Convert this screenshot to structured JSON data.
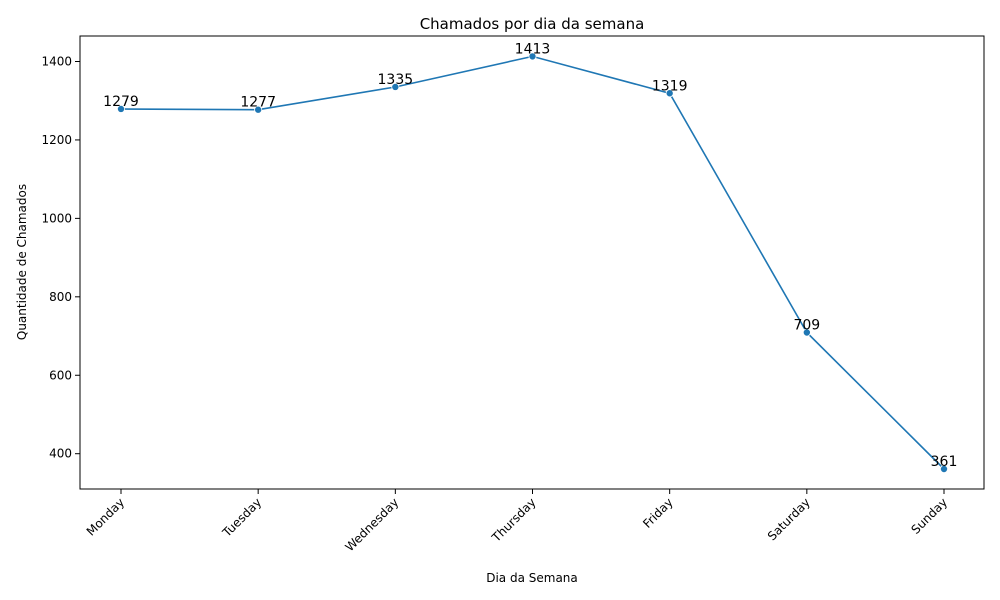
{
  "chart_data": {
    "type": "line",
    "title": "Chamados por dia da semana",
    "xlabel": "Dia da Semana",
    "ylabel": "Quantidade de Chamados",
    "categories": [
      "Monday",
      "Tuesday",
      "Wednesday",
      "Thursday",
      "Friday",
      "Saturday",
      "Sunday"
    ],
    "series": [
      {
        "values": [
          1279,
          1277,
          1335,
          1413,
          1319,
          709,
          361
        ]
      }
    ],
    "data_labels": [
      "1279",
      "1277",
      "1335",
      "1413",
      "1319",
      "709",
      "361"
    ],
    "ylim": [
      310,
      1465
    ],
    "yticks": [
      400,
      600,
      800,
      1000,
      1200,
      1400
    ],
    "ytick_labels": [
      "400",
      "600",
      "800",
      "1000",
      "1200",
      "1400"
    ],
    "xtick_rotation_deg": -45,
    "grid": false,
    "legend": "none",
    "line_color": "#1f77b4",
    "marker": "circle"
  }
}
